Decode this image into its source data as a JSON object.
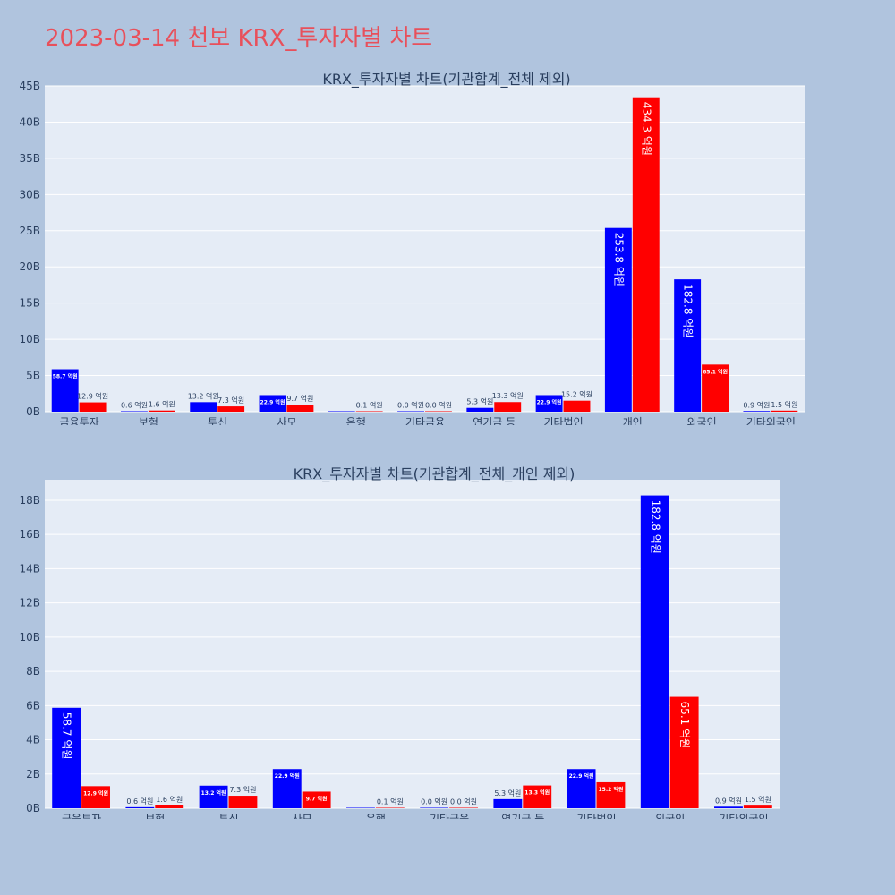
{
  "page": {
    "title": "2023-03-14 천보 KRX_투자자별 차트"
  },
  "colors": {
    "buy": "#0000ff",
    "sell": "#ff0000",
    "plot_bg": "#e5ecf6",
    "paper_bg": "#b0c4de",
    "title": "#e8505b"
  },
  "chart_data": [
    {
      "type": "bar",
      "title": "KRX_투자자별 차트(기관합계_전체 제외)",
      "categories": [
        "금융투자",
        "보험",
        "투신",
        "사모",
        "은행",
        "기타금융",
        "연기금 등",
        "기타법인",
        "개인",
        "외국인",
        "기타외국인"
      ],
      "series": [
        {
          "color": "#0000ff",
          "values": [
            5.87,
            0.06,
            1.32,
            2.29,
            0.0,
            0.0,
            0.53,
            2.29,
            25.38,
            18.28,
            0.09
          ],
          "labels": [
            "58.7 억원",
            "0.6 억원",
            "13.2 억원",
            "22.9 억원",
            "",
            "0.0 억원",
            "5.3 억원",
            "22.9 억원",
            "253.8 억원",
            "182.8 억원",
            "0.9 억원"
          ]
        },
        {
          "color": "#ff0000",
          "values": [
            1.29,
            0.16,
            0.73,
            0.97,
            0.01,
            0.0,
            1.33,
            1.52,
            43.43,
            6.51,
            0.15
          ],
          "labels": [
            "12.9 억원",
            "1.6 억원",
            "7.3 억원",
            "9.7 억원",
            "0.1 억원",
            "0.0 억원",
            "13.3 억원",
            "15.2 억원",
            "434.3 억원",
            "65.1 억원",
            "1.5 억원"
          ]
        }
      ],
      "y_unit": "B",
      "yticks": [
        0,
        5,
        10,
        15,
        20,
        25,
        30,
        35,
        40,
        45
      ],
      "ylim": [
        0,
        45
      ],
      "grid": true
    },
    {
      "type": "bar",
      "title": "KRX_투자자별 차트(기관합계_전체_개인 제외)",
      "categories": [
        "금융투자",
        "보험",
        "투신",
        "사모",
        "은행",
        "기타금융",
        "연기금 등",
        "기타법인",
        "외국인",
        "기타외국인"
      ],
      "series": [
        {
          "color": "#0000ff",
          "values": [
            5.87,
            0.06,
            1.32,
            2.29,
            0.0,
            0.0,
            0.53,
            2.29,
            18.28,
            0.09
          ],
          "labels": [
            "58.7 억원",
            "0.6 억원",
            "13.2 억원",
            "22.9 억원",
            "",
            "0.0 억원",
            "5.3 억원",
            "22.9 억원",
            "182.8 억원",
            "0.9 억원"
          ]
        },
        {
          "color": "#ff0000",
          "values": [
            1.29,
            0.16,
            0.73,
            0.97,
            0.01,
            0.0,
            1.33,
            1.52,
            6.51,
            0.15
          ],
          "labels": [
            "12.9 억원",
            "1.6 억원",
            "7.3 억원",
            "9.7 억원",
            "0.1 억원",
            "0.0 억원",
            "13.3 억원",
            "15.2 억원",
            "65.1 억원",
            "1.5 억원"
          ]
        }
      ],
      "y_unit": "B",
      "yticks": [
        0,
        2,
        4,
        6,
        8,
        10,
        12,
        14,
        16,
        18
      ],
      "ylim": [
        0,
        19.2
      ],
      "grid": true
    }
  ]
}
